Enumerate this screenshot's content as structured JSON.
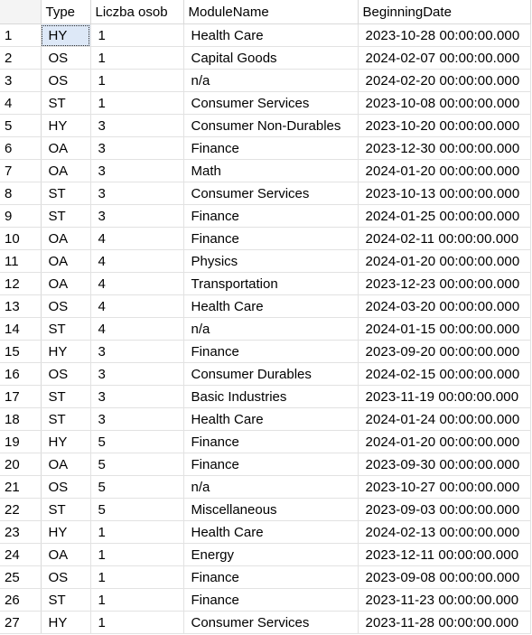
{
  "columns": [
    "Type",
    "Liczba osob",
    "ModuleName",
    "BeginningDate"
  ],
  "rows": [
    {
      "num": "1",
      "type": "HY",
      "count": "1",
      "module": "Health Care",
      "date": "2023-10-28 00:00:00.000"
    },
    {
      "num": "2",
      "type": "OS",
      "count": "1",
      "module": "Capital Goods",
      "date": "2024-02-07 00:00:00.000"
    },
    {
      "num": "3",
      "type": "OS",
      "count": "1",
      "module": "n/a",
      "date": "2024-02-20 00:00:00.000"
    },
    {
      "num": "4",
      "type": "ST",
      "count": "1",
      "module": "Consumer Services",
      "date": "2023-10-08 00:00:00.000"
    },
    {
      "num": "5",
      "type": "HY",
      "count": "3",
      "module": "Consumer Non-Durables",
      "date": "2023-10-20 00:00:00.000"
    },
    {
      "num": "6",
      "type": "OA",
      "count": "3",
      "module": "Finance",
      "date": "2023-12-30 00:00:00.000"
    },
    {
      "num": "7",
      "type": "OA",
      "count": "3",
      "module": "Math",
      "date": "2024-01-20 00:00:00.000"
    },
    {
      "num": "8",
      "type": "ST",
      "count": "3",
      "module": "Consumer Services",
      "date": "2023-10-13 00:00:00.000"
    },
    {
      "num": "9",
      "type": "ST",
      "count": "3",
      "module": "Finance",
      "date": "2024-01-25 00:00:00.000"
    },
    {
      "num": "10",
      "type": "OA",
      "count": "4",
      "module": "Finance",
      "date": "2024-02-11 00:00:00.000"
    },
    {
      "num": "11",
      "type": "OA",
      "count": "4",
      "module": "Physics",
      "date": "2024-01-20 00:00:00.000"
    },
    {
      "num": "12",
      "type": "OA",
      "count": "4",
      "module": "Transportation",
      "date": "2023-12-23 00:00:00.000"
    },
    {
      "num": "13",
      "type": "OS",
      "count": "4",
      "module": "Health Care",
      "date": "2024-03-20 00:00:00.000"
    },
    {
      "num": "14",
      "type": "ST",
      "count": "4",
      "module": "n/a",
      "date": "2024-01-15 00:00:00.000"
    },
    {
      "num": "15",
      "type": "HY",
      "count": "3",
      "module": "Finance",
      "date": "2023-09-20 00:00:00.000"
    },
    {
      "num": "16",
      "type": "OS",
      "count": "3",
      "module": "Consumer Durables",
      "date": "2024-02-15 00:00:00.000"
    },
    {
      "num": "17",
      "type": "ST",
      "count": "3",
      "module": "Basic Industries",
      "date": "2023-11-19 00:00:00.000"
    },
    {
      "num": "18",
      "type": "ST",
      "count": "3",
      "module": "Health Care",
      "date": "2024-01-24 00:00:00.000"
    },
    {
      "num": "19",
      "type": "HY",
      "count": "5",
      "module": "Finance",
      "date": "2024-01-20 00:00:00.000"
    },
    {
      "num": "20",
      "type": "OA",
      "count": "5",
      "module": "Finance",
      "date": "2023-09-30 00:00:00.000"
    },
    {
      "num": "21",
      "type": "OS",
      "count": "5",
      "module": "n/a",
      "date": "2023-10-27 00:00:00.000"
    },
    {
      "num": "22",
      "type": "ST",
      "count": "5",
      "module": "Miscellaneous",
      "date": "2023-09-03 00:00:00.000"
    },
    {
      "num": "23",
      "type": "HY",
      "count": "1",
      "module": "Health Care",
      "date": "2024-02-13 00:00:00.000"
    },
    {
      "num": "24",
      "type": "OA",
      "count": "1",
      "module": "Energy",
      "date": "2023-12-11 00:00:00.000"
    },
    {
      "num": "25",
      "type": "OS",
      "count": "1",
      "module": "Finance",
      "date": "2023-09-08 00:00:00.000"
    },
    {
      "num": "26",
      "type": "ST",
      "count": "1",
      "module": "Finance",
      "date": "2023-11-23 00:00:00.000"
    },
    {
      "num": "27",
      "type": "HY",
      "count": "1",
      "module": "Consumer Services",
      "date": "2023-11-28 00:00:00.000"
    }
  ]
}
